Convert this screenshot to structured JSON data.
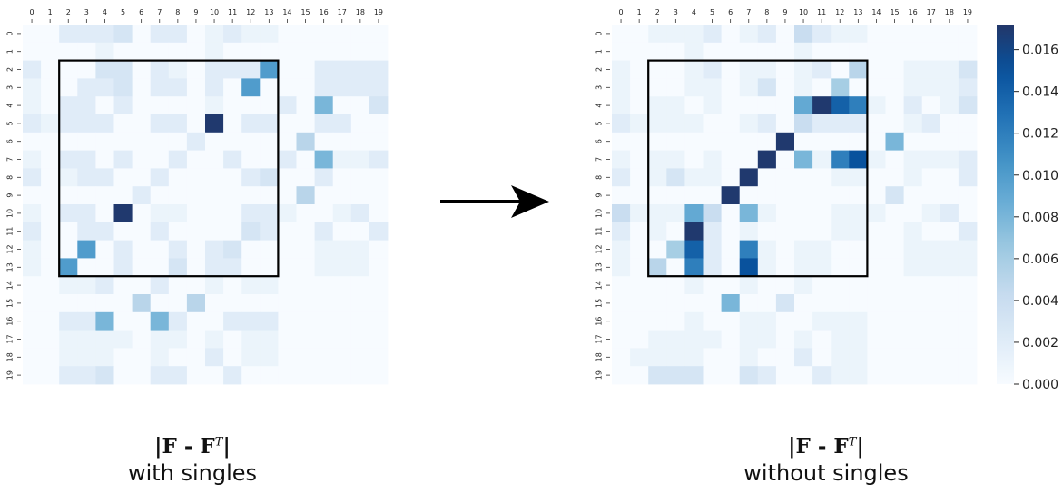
{
  "chart_data": [
    {
      "type": "heatmap",
      "name": "left",
      "x_ticks": [
        "0",
        "1",
        "2",
        "3",
        "4",
        "5",
        "6",
        "7",
        "8",
        "9",
        "10",
        "11",
        "12",
        "13",
        "14",
        "15",
        "16",
        "17",
        "18",
        "19"
      ],
      "y_ticks": [
        "0",
        "1",
        "2",
        "3",
        "4",
        "5",
        "6",
        "7",
        "8",
        "9",
        "10",
        "11",
        "12",
        "13",
        "14",
        "15",
        "16",
        "17",
        "18",
        "19"
      ],
      "highlight_box": {
        "rows": [
          2,
          13
        ],
        "cols": [
          2,
          13
        ]
      },
      "values": [
        [
          0.0,
          0.0,
          0.002,
          0.002,
          0.002,
          0.003,
          0.0,
          0.002,
          0.002,
          0.0,
          0.001,
          0.002,
          0.001,
          0.001,
          0.0,
          0.0,
          0.0,
          0.0,
          0.0,
          0.0
        ],
        [
          0.0,
          0.0,
          0.0,
          0.0,
          0.001,
          0.0,
          0.0,
          0.0,
          0.0,
          0.0,
          0.001,
          0.0,
          0.0,
          0.0,
          0.0,
          0.0,
          0.0,
          0.0,
          0.0,
          0.0
        ],
        [
          0.002,
          0.0,
          0.0,
          0.0,
          0.003,
          0.003,
          0.0,
          0.002,
          0.001,
          0.0,
          0.002,
          0.002,
          0.002,
          0.01,
          0.0,
          0.0,
          0.002,
          0.002,
          0.002,
          0.002
        ],
        [
          0.001,
          0.0,
          0.0,
          0.002,
          0.002,
          0.003,
          0.0,
          0.002,
          0.002,
          0.0,
          0.002,
          0.0,
          0.01,
          0.0,
          0.0,
          0.0,
          0.002,
          0.002,
          0.002,
          0.002
        ],
        [
          0.001,
          0.0,
          0.002,
          0.002,
          0.0,
          0.002,
          0.0,
          0.0,
          0.0,
          0.0,
          0.001,
          0.0,
          0.0,
          0.0,
          0.002,
          0.0,
          0.008,
          0.0,
          0.0,
          0.003
        ],
        [
          0.002,
          0.001,
          0.002,
          0.002,
          0.002,
          0.0,
          0.0,
          0.002,
          0.002,
          0.0,
          0.017,
          0.0,
          0.002,
          0.002,
          0.0,
          0.0,
          0.002,
          0.002,
          0.0,
          0.0
        ],
        [
          0.0,
          0.0,
          0.0,
          0.0,
          0.0,
          0.0,
          0.0,
          0.0,
          0.0,
          0.002,
          0.0,
          0.0,
          0.0,
          0.0,
          0.0,
          0.005,
          0.0,
          0.0,
          0.0,
          0.0
        ],
        [
          0.001,
          0.0,
          0.002,
          0.002,
          0.0,
          0.002,
          0.0,
          0.0,
          0.002,
          0.0,
          0.0,
          0.002,
          0.0,
          0.0,
          0.002,
          0.0,
          0.008,
          0.001,
          0.001,
          0.002
        ],
        [
          0.002,
          0.0,
          0.001,
          0.002,
          0.002,
          0.0,
          0.0,
          0.002,
          0.0,
          0.0,
          0.0,
          0.0,
          0.002,
          0.003,
          0.0,
          0.0,
          0.002,
          0.0,
          0.0,
          0.0
        ],
        [
          0.0,
          0.0,
          0.0,
          0.0,
          0.0,
          0.0,
          0.002,
          0.0,
          0.0,
          0.0,
          0.0,
          0.0,
          0.0,
          0.0,
          0.0,
          0.005,
          0.0,
          0.0,
          0.0,
          0.0
        ],
        [
          0.001,
          0.0,
          0.002,
          0.002,
          0.0,
          0.017,
          0.0,
          0.001,
          0.001,
          0.0,
          0.0,
          0.0,
          0.002,
          0.002,
          0.001,
          0.0,
          0.0,
          0.001,
          0.002,
          0.0
        ],
        [
          0.002,
          0.0,
          0.0,
          0.002,
          0.002,
          0.0,
          0.0,
          0.002,
          0.0,
          0.0,
          0.0,
          0.0,
          0.003,
          0.002,
          0.0,
          0.0,
          0.002,
          0.0,
          0.0,
          0.002
        ],
        [
          0.001,
          0.0,
          0.0,
          0.01,
          0.0,
          0.002,
          0.0,
          0.0,
          0.002,
          0.0,
          0.002,
          0.003,
          0.0,
          0.0,
          0.0,
          0.0,
          0.001,
          0.001,
          0.001,
          0.0
        ],
        [
          0.001,
          0.0,
          0.01,
          0.0,
          0.0,
          0.002,
          0.0,
          0.0,
          0.003,
          0.0,
          0.002,
          0.002,
          0.0,
          0.0,
          0.0,
          0.0,
          0.001,
          0.001,
          0.001,
          0.0
        ],
        [
          0.0,
          0.0,
          0.001,
          0.001,
          0.002,
          0.0,
          0.0,
          0.002,
          0.0,
          0.0,
          0.001,
          0.0,
          0.001,
          0.001,
          0.0,
          0.0,
          0.0,
          0.0,
          0.0,
          0.0
        ],
        [
          0.0,
          0.0,
          0.0,
          0.0,
          0.0,
          0.0,
          0.005,
          0.0,
          0.0,
          0.005,
          0.0,
          0.0,
          0.0,
          0.0,
          0.0,
          0.0,
          0.0,
          0.0,
          0.0,
          0.0
        ],
        [
          0.0,
          0.0,
          0.002,
          0.002,
          0.008,
          0.0,
          0.0,
          0.008,
          0.002,
          0.0,
          0.0,
          0.002,
          0.002,
          0.002,
          0.0,
          0.0,
          0.0,
          0.0,
          0.0,
          0.0
        ],
        [
          0.0,
          0.0,
          0.001,
          0.001,
          0.001,
          0.001,
          0.0,
          0.001,
          0.001,
          0.0,
          0.001,
          0.0,
          0.001,
          0.001,
          0.0,
          0.0,
          0.0,
          0.0,
          0.0,
          0.0
        ],
        [
          0.0,
          0.0,
          0.001,
          0.001,
          0.001,
          0.0,
          0.0,
          0.001,
          0.0,
          0.0,
          0.002,
          0.0,
          0.001,
          0.001,
          0.0,
          0.0,
          0.0,
          0.0,
          0.0,
          0.0
        ],
        [
          0.0,
          0.0,
          0.002,
          0.002,
          0.003,
          0.0,
          0.0,
          0.002,
          0.002,
          0.0,
          0.0,
          0.002,
          0.0,
          0.0,
          0.0,
          0.0,
          0.0,
          0.0,
          0.0,
          0.0
        ]
      ]
    },
    {
      "type": "heatmap",
      "name": "right",
      "x_ticks": [
        "0",
        "1",
        "2",
        "3",
        "4",
        "5",
        "6",
        "7",
        "8",
        "9",
        "10",
        "11",
        "12",
        "13",
        "14",
        "15",
        "16",
        "17",
        "18",
        "19"
      ],
      "y_ticks": [
        "0",
        "1",
        "2",
        "3",
        "4",
        "5",
        "6",
        "7",
        "8",
        "9",
        "10",
        "11",
        "12",
        "13",
        "14",
        "15",
        "16",
        "17",
        "18",
        "19"
      ],
      "highlight_box": {
        "rows": [
          2,
          13
        ],
        "cols": [
          2,
          13
        ]
      },
      "values": [
        [
          0.0,
          0.0,
          0.001,
          0.001,
          0.001,
          0.002,
          0.0,
          0.001,
          0.002,
          0.0,
          0.004,
          0.002,
          0.001,
          0.001,
          0.0,
          0.0,
          0.0,
          0.0,
          0.0,
          0.0
        ],
        [
          0.0,
          0.0,
          0.0,
          0.0,
          0.001,
          0.0,
          0.0,
          0.0,
          0.0,
          0.0,
          0.001,
          0.0,
          0.0,
          0.0,
          0.0,
          0.0,
          0.0,
          0.0,
          0.0,
          0.0
        ],
        [
          0.001,
          0.0,
          0.0,
          0.0,
          0.001,
          0.002,
          0.0,
          0.001,
          0.001,
          0.0,
          0.001,
          0.002,
          0.0,
          0.005,
          0.0,
          0.0,
          0.001,
          0.001,
          0.001,
          0.003
        ],
        [
          0.001,
          0.0,
          0.0,
          0.0,
          0.001,
          0.001,
          0.0,
          0.001,
          0.003,
          0.0,
          0.001,
          0.0,
          0.006,
          0.0,
          0.0,
          0.0,
          0.001,
          0.001,
          0.001,
          0.002
        ],
        [
          0.001,
          0.0,
          0.001,
          0.001,
          0.0,
          0.001,
          0.0,
          0.0,
          0.0,
          0.0,
          0.009,
          0.017,
          0.014,
          0.012,
          0.001,
          0.0,
          0.002,
          0.0,
          0.001,
          0.003
        ],
        [
          0.002,
          0.001,
          0.001,
          0.001,
          0.001,
          0.0,
          0.0,
          0.001,
          0.002,
          0.0,
          0.004,
          0.002,
          0.002,
          0.002,
          0.0,
          0.0,
          0.001,
          0.002,
          0.0,
          0.0
        ],
        [
          0.0,
          0.0,
          0.0,
          0.0,
          0.0,
          0.0,
          0.0,
          0.0,
          0.0,
          0.017,
          0.0,
          0.0,
          0.0,
          0.0,
          0.0,
          0.008,
          0.0,
          0.0,
          0.0,
          0.0
        ],
        [
          0.001,
          0.0,
          0.001,
          0.001,
          0.0,
          0.001,
          0.0,
          0.0,
          0.017,
          0.0,
          0.008,
          0.001,
          0.012,
          0.015,
          0.001,
          0.0,
          0.001,
          0.001,
          0.001,
          0.002
        ],
        [
          0.002,
          0.0,
          0.001,
          0.003,
          0.001,
          0.001,
          0.0,
          0.017,
          0.0,
          0.0,
          0.0,
          0.0,
          0.001,
          0.001,
          0.0,
          0.0,
          0.001,
          0.0,
          0.0,
          0.002
        ],
        [
          0.0,
          0.0,
          0.0,
          0.0,
          0.0,
          0.0,
          0.017,
          0.0,
          0.0,
          0.0,
          0.0,
          0.0,
          0.0,
          0.0,
          0.0,
          0.003,
          0.0,
          0.0,
          0.0,
          0.0
        ],
        [
          0.004,
          0.001,
          0.001,
          0.001,
          0.009,
          0.004,
          0.0,
          0.008,
          0.001,
          0.0,
          0.0,
          0.0,
          0.001,
          0.001,
          0.001,
          0.0,
          0.0,
          0.001,
          0.002,
          0.0
        ],
        [
          0.002,
          0.0,
          0.001,
          0.0,
          0.017,
          0.002,
          0.0,
          0.001,
          0.0,
          0.0,
          0.0,
          0.0,
          0.001,
          0.001,
          0.0,
          0.0,
          0.001,
          0.0,
          0.0,
          0.002
        ],
        [
          0.001,
          0.0,
          0.0,
          0.006,
          0.014,
          0.002,
          0.0,
          0.012,
          0.001,
          0.0,
          0.001,
          0.001,
          0.0,
          0.0,
          0.0,
          0.0,
          0.001,
          0.001,
          0.001,
          0.001
        ],
        [
          0.001,
          0.0,
          0.005,
          0.0,
          0.012,
          0.002,
          0.0,
          0.015,
          0.001,
          0.0,
          0.001,
          0.001,
          0.0,
          0.0,
          0.0,
          0.0,
          0.001,
          0.001,
          0.001,
          0.001
        ],
        [
          0.0,
          0.0,
          0.0,
          0.0,
          0.001,
          0.0,
          0.0,
          0.001,
          0.0,
          0.0,
          0.001,
          0.0,
          0.0,
          0.0,
          0.0,
          0.0,
          0.0,
          0.0,
          0.0,
          0.0
        ],
        [
          0.0,
          0.0,
          0.0,
          0.0,
          0.0,
          0.0,
          0.008,
          0.0,
          0.0,
          0.003,
          0.0,
          0.0,
          0.0,
          0.0,
          0.0,
          0.0,
          0.0,
          0.0,
          0.0,
          0.0
        ],
        [
          0.0,
          0.0,
          0.0,
          0.0,
          0.001,
          0.0,
          0.0,
          0.001,
          0.001,
          0.0,
          0.0,
          0.001,
          0.001,
          0.001,
          0.0,
          0.0,
          0.0,
          0.0,
          0.0,
          0.0
        ],
        [
          0.0,
          0.0,
          0.001,
          0.001,
          0.001,
          0.001,
          0.0,
          0.001,
          0.001,
          0.0,
          0.001,
          0.0,
          0.001,
          0.001,
          0.0,
          0.0,
          0.0,
          0.0,
          0.0,
          0.0
        ],
        [
          0.0,
          0.001,
          0.001,
          0.001,
          0.001,
          0.0,
          0.0,
          0.001,
          0.0,
          0.0,
          0.002,
          0.0,
          0.001,
          0.001,
          0.0,
          0.0,
          0.0,
          0.0,
          0.0,
          0.0
        ],
        [
          0.0,
          0.0,
          0.003,
          0.003,
          0.003,
          0.0,
          0.0,
          0.003,
          0.002,
          0.0,
          0.0,
          0.002,
          0.001,
          0.001,
          0.0,
          0.0,
          0.0,
          0.0,
          0.0,
          0.0
        ]
      ]
    }
  ],
  "colorbar": {
    "min": 0.0,
    "max": 0.0172,
    "colormap": "Blues",
    "ticks": [
      "0.000",
      "0.002",
      "0.004",
      "0.006",
      "0.008",
      "0.010",
      "0.012",
      "0.014",
      "0.016"
    ]
  },
  "captions": {
    "left": {
      "formula_main": "|F - F",
      "formula_sup": "T",
      "formula_end": "|",
      "subtitle": "with singles"
    },
    "right": {
      "formula_main": "|F - F",
      "formula_sup": "T",
      "formula_end": "|",
      "subtitle": "without singles"
    }
  },
  "arrow": {
    "direction": "right"
  }
}
